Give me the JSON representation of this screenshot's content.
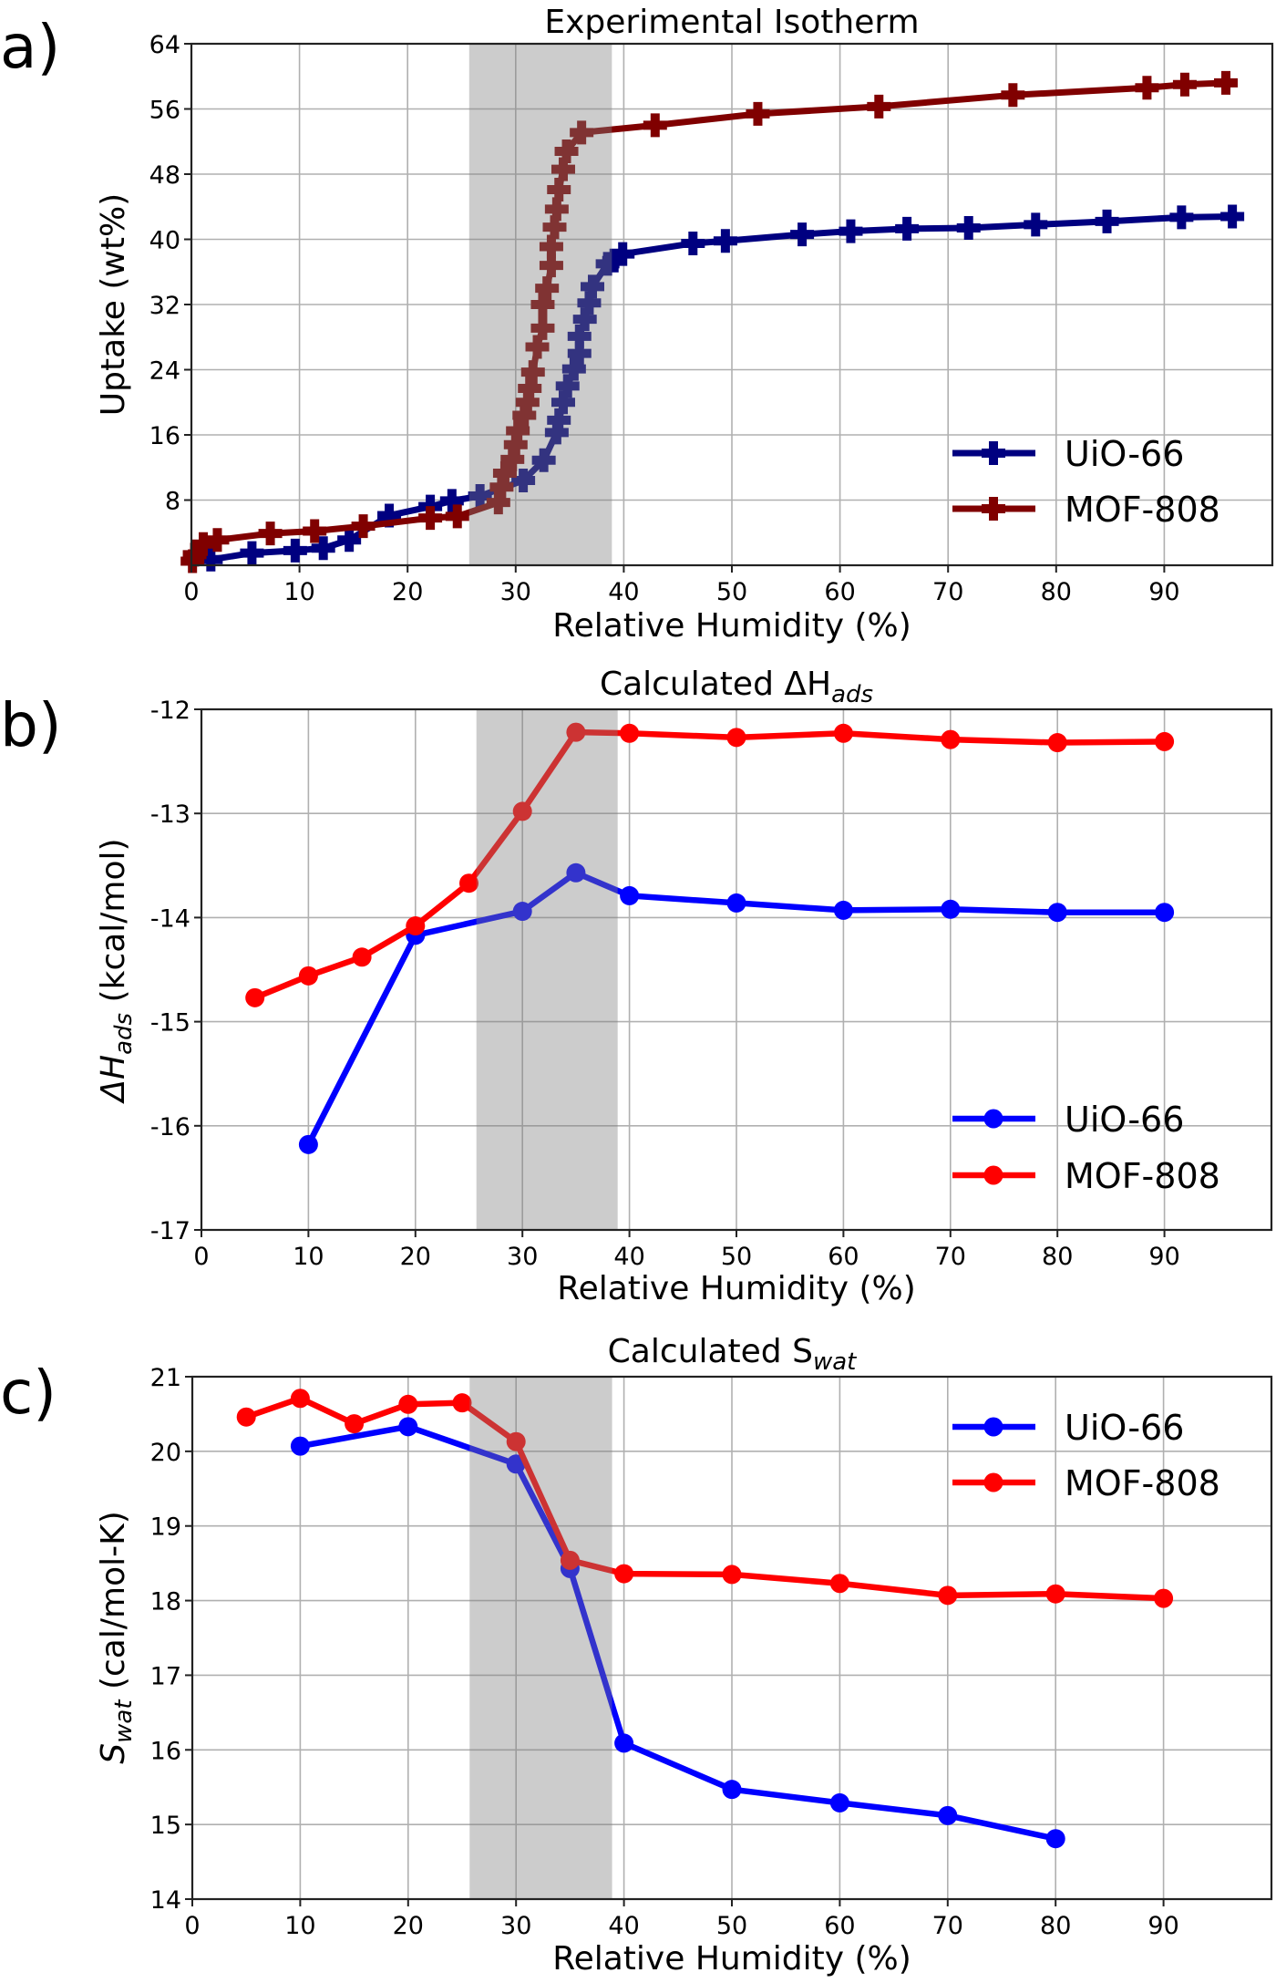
{
  "chart_data": [
    {
      "panel_label": "a)",
      "type": "line",
      "title": "Experimental Isotherm",
      "xlabel": "Relative Humidity (%)",
      "ylabel": "Uptake (wt%)",
      "xlim": [
        0,
        100
      ],
      "ylim": [
        0,
        64
      ],
      "xticks": [
        0,
        10,
        20,
        30,
        40,
        50,
        60,
        70,
        80,
        90
      ],
      "yticks": [
        8,
        16,
        24,
        32,
        40,
        48,
        56,
        64
      ],
      "grid": true,
      "shaded_region_x": [
        25.7,
        38.9
      ],
      "legend": "lower-right",
      "marker": "plus",
      "series": [
        {
          "name": "UiO-66",
          "color": "#000080",
          "x": [
            1.8,
            5.6,
            9.6,
            12.2,
            14.6,
            18.3,
            22.1,
            24.1,
            26.7,
            30.7,
            32.6,
            33.8,
            34.0,
            34.4,
            34.8,
            35.4,
            35.9,
            35.9,
            36.4,
            36.8,
            37.1,
            38.5,
            39.1,
            39.9,
            46.4,
            49.4,
            56.5,
            61.0,
            66.2,
            71.9,
            78.1,
            84.7,
            91.6,
            96.3
          ],
          "y": [
            0.7,
            1.5,
            1.8,
            2.1,
            3.1,
            6.1,
            7.2,
            7.9,
            8.5,
            10.4,
            12.9,
            16.3,
            17.8,
            20.0,
            22.0,
            24.1,
            26.0,
            28.1,
            30.2,
            32.2,
            34.2,
            37.0,
            37.4,
            38.2,
            39.5,
            39.8,
            40.6,
            41.0,
            41.3,
            41.4,
            41.8,
            42.2,
            42.7,
            42.8
          ]
        },
        {
          "name": "MOF-808",
          "color": "#800000",
          "x": [
            0.1,
            0.3,
            1.1,
            2.4,
            7.3,
            11.4,
            15.9,
            22.1,
            24.6,
            28.4,
            28.7,
            29.0,
            29.7,
            30.0,
            30.2,
            30.8,
            31.1,
            31.3,
            31.6,
            32.0,
            32.5,
            32.5,
            32.9,
            33.3,
            33.3,
            33.6,
            33.8,
            34.0,
            34.4,
            34.7,
            36.1,
            42.9,
            52.4,
            63.6,
            76.0,
            88.4,
            91.9,
            95.7
          ],
          "y": [
            0.5,
            1.3,
            2.6,
            3.1,
            3.9,
            4.2,
            4.8,
            5.8,
            6.0,
            7.7,
            9.6,
            11.3,
            13.0,
            14.8,
            16.5,
            18.4,
            20.0,
            21.7,
            23.7,
            26.8,
            29.1,
            32.0,
            34.0,
            36.8,
            39.1,
            41.5,
            43.7,
            46.1,
            48.6,
            50.8,
            53.1,
            54.0,
            55.4,
            56.3,
            57.7,
            58.6,
            59.0,
            59.2
          ]
        }
      ]
    },
    {
      "panel_label": "b)",
      "type": "line",
      "title": "Calculated ΔH",
      "title_subscript": "ads",
      "xlabel": "Relative Humidity (%)",
      "ylabel": "ΔH",
      "ylabel_subscript": "ads",
      "ylabel_unit": " (kcal/mol)",
      "xlim": [
        0,
        100
      ],
      "ylim": [
        -17,
        -12
      ],
      "xticks": [
        0,
        10,
        20,
        30,
        40,
        50,
        60,
        70,
        80,
        90
      ],
      "yticks": [
        -17,
        -16,
        -15,
        -14,
        -13,
        -12
      ],
      "grid": true,
      "shaded_region_x": [
        25.7,
        38.9
      ],
      "legend": "lower-right",
      "marker": "circle",
      "series": [
        {
          "name": "UiO-66",
          "color": "#0000ff",
          "x": [
            10,
            20,
            30,
            35,
            40,
            50,
            60,
            70,
            80,
            90
          ],
          "y": [
            -16.18,
            -14.17,
            -13.94,
            -13.57,
            -13.79,
            -13.86,
            -13.93,
            -13.92,
            -13.95,
            -13.95
          ]
        },
        {
          "name": "MOF-808",
          "color": "#ff0000",
          "x": [
            5,
            10,
            15,
            20,
            25,
            30,
            35,
            40,
            50,
            60,
            70,
            80,
            90
          ],
          "y": [
            -14.77,
            -14.56,
            -14.38,
            -14.08,
            -13.67,
            -12.98,
            -12.22,
            -12.23,
            -12.27,
            -12.23,
            -12.29,
            -12.32,
            -12.31
          ]
        }
      ]
    },
    {
      "panel_label": "c)",
      "type": "line",
      "title": "Calculated S",
      "title_subscript": "wat",
      "xlabel": "Relative Humidity (%)",
      "ylabel": "S",
      "ylabel_subscript": "wat",
      "ylabel_unit": " (cal/mol-K)",
      "xlim": [
        0,
        100
      ],
      "ylim": [
        14,
        21
      ],
      "xticks": [
        0,
        10,
        20,
        30,
        40,
        50,
        60,
        70,
        80,
        90
      ],
      "yticks": [
        14,
        15,
        16,
        17,
        18,
        19,
        20,
        21
      ],
      "grid": true,
      "shaded_region_x": [
        25.7,
        38.9
      ],
      "legend": "upper-right",
      "marker": "circle",
      "series": [
        {
          "name": "UiO-66",
          "color": "#0000ff",
          "x": [
            10,
            20,
            30,
            35,
            40,
            50,
            60,
            70,
            80
          ],
          "y": [
            20.07,
            20.33,
            19.83,
            18.43,
            16.09,
            15.47,
            15.29,
            15.12,
            14.81
          ]
        },
        {
          "name": "MOF-808",
          "color": "#ff0000",
          "x": [
            5,
            10,
            15,
            20,
            25,
            30,
            35,
            40,
            50,
            60,
            70,
            80,
            90
          ],
          "y": [
            20.46,
            20.71,
            20.37,
            20.63,
            20.65,
            20.13,
            18.54,
            18.36,
            18.35,
            18.23,
            18.07,
            18.09,
            18.03
          ]
        }
      ]
    }
  ]
}
